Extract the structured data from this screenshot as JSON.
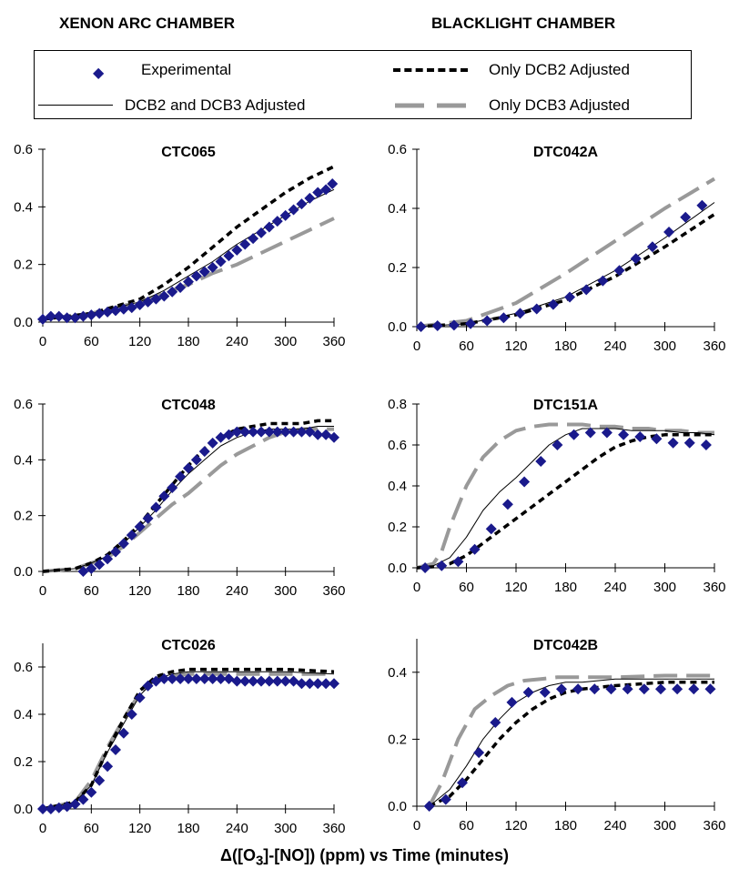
{
  "headers": {
    "left": "XENON ARC CHAMBER",
    "right": "BLACKLIGHT CHAMBER"
  },
  "legend": {
    "experimental": "Experimental",
    "dcb2_only": "Only DCB2 Adjusted",
    "dcb2_dcb3": "DCB2 and DCB3 Adjusted",
    "dcb3_only": "Only DCB3 Adjusted"
  },
  "footer": {
    "prefix": "Δ([O",
    "sub": "3",
    "suffix": "]-[NO]) (ppm) vs Time (minutes)"
  },
  "colors": {
    "experimental": "#1a1a8c",
    "dcb3_only": "#999999",
    "dcb2_only": "#000000",
    "dcb2_dcb3": "#000000"
  },
  "chart_data": [
    {
      "type": "line",
      "title": "CTC065",
      "xlim": [
        0,
        360
      ],
      "ylim": [
        0,
        0.6
      ],
      "xticks": [
        "0",
        "60",
        "120",
        "180",
        "240",
        "300",
        "360"
      ],
      "yticks": [
        "0.0",
        "0.2",
        "0.4",
        "0.6"
      ],
      "experimental": {
        "x": [
          0,
          10,
          20,
          30,
          40,
          50,
          60,
          70,
          80,
          90,
          100,
          110,
          120,
          130,
          140,
          150,
          160,
          170,
          180,
          190,
          200,
          210,
          220,
          230,
          240,
          250,
          260,
          270,
          280,
          290,
          300,
          310,
          320,
          330,
          340,
          350,
          358
        ],
        "y": [
          0.01,
          0.02,
          0.02,
          0.015,
          0.015,
          0.02,
          0.025,
          0.03,
          0.035,
          0.04,
          0.045,
          0.05,
          0.06,
          0.07,
          0.08,
          0.09,
          0.105,
          0.12,
          0.14,
          0.16,
          0.175,
          0.19,
          0.21,
          0.23,
          0.25,
          0.27,
          0.29,
          0.31,
          0.33,
          0.35,
          0.37,
          0.39,
          0.41,
          0.43,
          0.45,
          0.46,
          0.48
        ]
      },
      "dcb2_only": {
        "x": [
          0,
          60,
          120,
          150,
          180,
          210,
          240,
          270,
          300,
          330,
          360
        ],
        "y": [
          0.01,
          0.03,
          0.08,
          0.13,
          0.19,
          0.26,
          0.33,
          0.39,
          0.45,
          0.5,
          0.54
        ]
      },
      "dcb2_dcb3": {
        "x": [
          0,
          60,
          120,
          150,
          180,
          210,
          240,
          270,
          300,
          330,
          360
        ],
        "y": [
          0.01,
          0.03,
          0.07,
          0.11,
          0.16,
          0.21,
          0.27,
          0.32,
          0.37,
          0.42,
          0.46
        ]
      },
      "dcb3_only": {
        "x": [
          0,
          60,
          120,
          150,
          180,
          210,
          240,
          270,
          300,
          330,
          360
        ],
        "y": [
          0.01,
          0.03,
          0.07,
          0.1,
          0.13,
          0.17,
          0.2,
          0.24,
          0.28,
          0.32,
          0.36
        ]
      }
    },
    {
      "type": "line",
      "title": "DTC042A",
      "xlim": [
        0,
        360
      ],
      "ylim": [
        0,
        0.6
      ],
      "xticks": [
        "0",
        "60",
        "120",
        "180",
        "240",
        "300",
        "360"
      ],
      "yticks": [
        "0.0",
        "0.2",
        "0.4",
        "0.6"
      ],
      "experimental": {
        "x": [
          5,
          25,
          45,
          65,
          85,
          105,
          125,
          145,
          165,
          185,
          205,
          225,
          245,
          265,
          285,
          305,
          325,
          345
        ],
        "y": [
          0.0,
          0.003,
          0.005,
          0.01,
          0.02,
          0.03,
          0.045,
          0.06,
          0.075,
          0.1,
          0.125,
          0.155,
          0.19,
          0.23,
          0.27,
          0.32,
          0.37,
          0.41
        ]
      },
      "dcb2_only": {
        "x": [
          0,
          60,
          120,
          180,
          240,
          300,
          360
        ],
        "y": [
          0,
          0.01,
          0.04,
          0.09,
          0.17,
          0.27,
          0.38
        ]
      },
      "dcb2_dcb3": {
        "x": [
          0,
          60,
          120,
          180,
          240,
          300,
          360
        ],
        "y": [
          0,
          0.01,
          0.045,
          0.1,
          0.19,
          0.3,
          0.42
        ]
      },
      "dcb3_only": {
        "x": [
          0,
          60,
          120,
          180,
          240,
          300,
          360
        ],
        "y": [
          0,
          0.02,
          0.08,
          0.18,
          0.29,
          0.4,
          0.5
        ]
      }
    },
    {
      "type": "line",
      "title": "CTC048",
      "xlim": [
        0,
        360
      ],
      "ylim": [
        0,
        0.6
      ],
      "xticks": [
        "0",
        "60",
        "120",
        "180",
        "240",
        "300",
        "360"
      ],
      "yticks": [
        "0.0",
        "0.2",
        "0.4",
        "0.6"
      ],
      "experimental": {
        "x": [
          50,
          60,
          70,
          80,
          90,
          100,
          110,
          120,
          130,
          140,
          150,
          160,
          170,
          180,
          190,
          200,
          210,
          220,
          230,
          240,
          250,
          260,
          270,
          280,
          290,
          300,
          310,
          320,
          330,
          340,
          350,
          360
        ],
        "y": [
          0.0,
          0.01,
          0.025,
          0.045,
          0.07,
          0.1,
          0.13,
          0.16,
          0.19,
          0.23,
          0.27,
          0.3,
          0.34,
          0.37,
          0.4,
          0.43,
          0.46,
          0.48,
          0.49,
          0.5,
          0.5,
          0.5,
          0.5,
          0.5,
          0.5,
          0.5,
          0.5,
          0.5,
          0.5,
          0.49,
          0.49,
          0.48
        ]
      },
      "dcb2_only": {
        "x": [
          0,
          40,
          60,
          80,
          100,
          120,
          140,
          160,
          180,
          200,
          220,
          240,
          260,
          280,
          300,
          320,
          340,
          360
        ],
        "y": [
          0,
          0.01,
          0.03,
          0.06,
          0.11,
          0.17,
          0.24,
          0.31,
          0.38,
          0.44,
          0.48,
          0.51,
          0.52,
          0.53,
          0.53,
          0.53,
          0.54,
          0.54
        ]
      },
      "dcb2_dcb3": {
        "x": [
          0,
          40,
          60,
          80,
          100,
          120,
          140,
          160,
          180,
          200,
          220,
          240,
          260,
          280,
          300,
          320,
          340,
          360
        ],
        "y": [
          0,
          0.01,
          0.03,
          0.055,
          0.1,
          0.16,
          0.22,
          0.29,
          0.35,
          0.4,
          0.45,
          0.48,
          0.5,
          0.51,
          0.51,
          0.51,
          0.52,
          0.52
        ]
      },
      "dcb3_only": {
        "x": [
          0,
          40,
          60,
          80,
          100,
          120,
          140,
          160,
          180,
          200,
          220,
          240,
          260,
          280,
          300,
          320,
          340,
          360
        ],
        "y": [
          0,
          0.01,
          0.03,
          0.05,
          0.09,
          0.14,
          0.19,
          0.24,
          0.28,
          0.33,
          0.38,
          0.42,
          0.45,
          0.48,
          0.5,
          0.51,
          0.51,
          0.51
        ]
      }
    },
    {
      "type": "line",
      "title": "DTC151A",
      "xlim": [
        0,
        360
      ],
      "ylim": [
        0,
        0.8
      ],
      "xticks": [
        "0",
        "60",
        "120",
        "180",
        "240",
        "300",
        "360"
      ],
      "yticks": [
        "0.0",
        "0.2",
        "0.4",
        "0.6",
        "0.8"
      ],
      "experimental": {
        "x": [
          10,
          30,
          50,
          70,
          90,
          110,
          130,
          150,
          170,
          190,
          210,
          230,
          250,
          270,
          290,
          310,
          330,
          350
        ],
        "y": [
          0.0,
          0.01,
          0.03,
          0.09,
          0.19,
          0.31,
          0.42,
          0.52,
          0.6,
          0.65,
          0.66,
          0.66,
          0.65,
          0.64,
          0.63,
          0.61,
          0.61,
          0.6
        ]
      },
      "dcb2_only": {
        "x": [
          0,
          20,
          40,
          60,
          80,
          100,
          120,
          140,
          160,
          180,
          200,
          220,
          240,
          260,
          280,
          300,
          320,
          340,
          360
        ],
        "y": [
          0,
          0.005,
          0.02,
          0.06,
          0.12,
          0.18,
          0.24,
          0.3,
          0.36,
          0.42,
          0.48,
          0.54,
          0.59,
          0.62,
          0.64,
          0.65,
          0.65,
          0.65,
          0.65
        ]
      },
      "dcb2_dcb3": {
        "x": [
          0,
          20,
          40,
          60,
          80,
          100,
          120,
          140,
          160,
          180,
          200,
          220,
          240,
          260,
          280,
          300,
          320,
          340,
          360
        ],
        "y": [
          0,
          0.01,
          0.05,
          0.15,
          0.28,
          0.37,
          0.44,
          0.52,
          0.6,
          0.65,
          0.68,
          0.68,
          0.68,
          0.67,
          0.67,
          0.67,
          0.66,
          0.66,
          0.65
        ]
      },
      "dcb3_only": {
        "x": [
          0,
          20,
          30,
          40,
          60,
          80,
          100,
          120,
          140,
          160,
          180,
          200,
          220,
          240,
          260,
          280,
          300,
          320,
          340,
          360
        ],
        "y": [
          0,
          0.02,
          0.08,
          0.2,
          0.4,
          0.54,
          0.62,
          0.67,
          0.69,
          0.7,
          0.7,
          0.7,
          0.69,
          0.69,
          0.68,
          0.68,
          0.67,
          0.67,
          0.66,
          0.66
        ]
      }
    },
    {
      "type": "line",
      "title": "CTC026",
      "xlim": [
        0,
        360
      ],
      "ylim": [
        0,
        0.7
      ],
      "xticks": [
        "0",
        "60",
        "120",
        "180",
        "240",
        "300",
        "360"
      ],
      "yticks": [
        "0.0",
        "0.2",
        "0.4",
        "0.6"
      ],
      "experimental": {
        "x": [
          0,
          10,
          20,
          30,
          40,
          50,
          60,
          70,
          80,
          90,
          100,
          110,
          120,
          130,
          140,
          150,
          160,
          170,
          180,
          190,
          200,
          210,
          220,
          230,
          240,
          250,
          260,
          270,
          280,
          290,
          300,
          310,
          320,
          330,
          340,
          350,
          360
        ],
        "y": [
          0.0,
          0.0,
          0.005,
          0.01,
          0.02,
          0.04,
          0.07,
          0.12,
          0.18,
          0.25,
          0.32,
          0.4,
          0.47,
          0.52,
          0.54,
          0.55,
          0.55,
          0.55,
          0.55,
          0.55,
          0.55,
          0.55,
          0.55,
          0.55,
          0.54,
          0.54,
          0.54,
          0.54,
          0.54,
          0.54,
          0.54,
          0.54,
          0.53,
          0.53,
          0.53,
          0.53,
          0.53
        ]
      },
      "dcb2_only": {
        "x": [
          0,
          40,
          60,
          80,
          100,
          120,
          140,
          160,
          180,
          240,
          300,
          360
        ],
        "y": [
          0,
          0.03,
          0.1,
          0.25,
          0.38,
          0.5,
          0.56,
          0.58,
          0.59,
          0.59,
          0.59,
          0.58
        ]
      },
      "dcb2_dcb3": {
        "x": [
          0,
          40,
          60,
          80,
          100,
          120,
          140,
          160,
          180,
          240,
          300,
          360
        ],
        "y": [
          0,
          0.03,
          0.1,
          0.24,
          0.36,
          0.48,
          0.55,
          0.57,
          0.58,
          0.58,
          0.58,
          0.57
        ]
      },
      "dcb3_only": {
        "x": [
          0,
          40,
          60,
          80,
          100,
          120,
          140,
          160,
          180,
          240,
          300,
          360
        ],
        "y": [
          0,
          0.03,
          0.12,
          0.26,
          0.38,
          0.49,
          0.55,
          0.56,
          0.57,
          0.57,
          0.57,
          0.57
        ]
      }
    },
    {
      "type": "line",
      "title": "DTC042B",
      "xlim": [
        0,
        360
      ],
      "ylim": [
        0,
        0.5
      ],
      "xticks": [
        "0",
        "60",
        "120",
        "180",
        "240",
        "300",
        "360"
      ],
      "yticks": [
        "0.0",
        "0.2",
        "0.4"
      ],
      "experimental": {
        "x": [
          15,
          35,
          55,
          75,
          95,
          115,
          135,
          155,
          175,
          195,
          215,
          235,
          255,
          275,
          295,
          315,
          335,
          355
        ],
        "y": [
          0.0,
          0.02,
          0.07,
          0.16,
          0.25,
          0.31,
          0.34,
          0.34,
          0.35,
          0.35,
          0.35,
          0.35,
          0.35,
          0.35,
          0.35,
          0.35,
          0.35,
          0.35
        ]
      },
      "dcb2_only": {
        "x": [
          15,
          40,
          60,
          80,
          100,
          120,
          140,
          160,
          180,
          200,
          240,
          300,
          360
        ],
        "y": [
          0,
          0.03,
          0.08,
          0.14,
          0.2,
          0.25,
          0.29,
          0.32,
          0.34,
          0.35,
          0.36,
          0.37,
          0.37
        ]
      },
      "dcb2_dcb3": {
        "x": [
          15,
          40,
          60,
          80,
          100,
          120,
          140,
          160,
          180,
          200,
          240,
          300,
          360
        ],
        "y": [
          0,
          0.05,
          0.12,
          0.2,
          0.26,
          0.31,
          0.34,
          0.36,
          0.37,
          0.37,
          0.38,
          0.38,
          0.38
        ]
      },
      "dcb3_only": {
        "x": [
          15,
          30,
          50,
          70,
          90,
          110,
          130,
          150,
          170,
          200,
          240,
          300,
          360
        ],
        "y": [
          0,
          0.07,
          0.2,
          0.29,
          0.33,
          0.36,
          0.375,
          0.38,
          0.385,
          0.385,
          0.385,
          0.39,
          0.39
        ]
      }
    }
  ]
}
